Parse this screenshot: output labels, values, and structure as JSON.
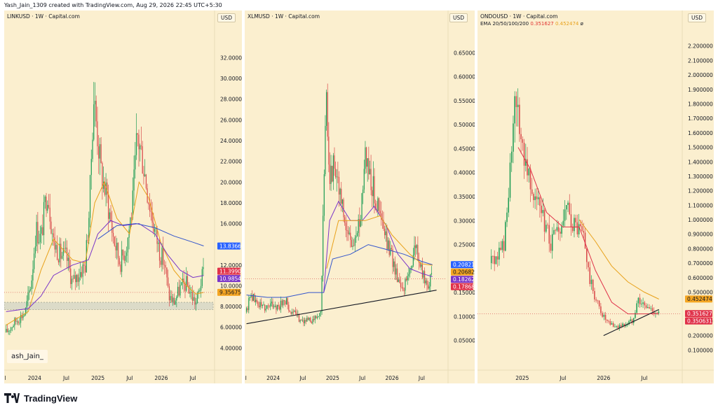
{
  "header": {
    "created_by": "Yash_Jain_1309 created with TradingView.com, Aug 29, 2026 22:45 UTC+5:30"
  },
  "footer": {
    "brand": "TradingView",
    "icon": "tradingview-logo-icon"
  },
  "watermark": "ash_Jain_",
  "chart_data": [
    {
      "type": "candlestick",
      "title": "LINKUSD · 1W · Capital.com",
      "currency": "USD",
      "y_ticks": [
        "32.00000",
        "30.00000",
        "28.00000",
        "26.00000",
        "24.00000",
        "22.00000",
        "20.00000",
        "18.00000",
        "16.00000",
        "12.00000",
        "10.00000",
        "8.00000",
        "6.00000",
        "4.00000"
      ],
      "y_tick_values": [
        32,
        30,
        28,
        26,
        24,
        22,
        20,
        18,
        16,
        12,
        10,
        8,
        6,
        4
      ],
      "ylim": [
        2.4,
        34.8
      ],
      "x_ticks": [
        "Jul",
        "2024",
        "Jul",
        "2025",
        "Jul",
        "2026",
        "Jul"
      ],
      "x_tick_dates": [
        "2023-07-01",
        "2024-01-01",
        "2024-07-01",
        "2025-01-01",
        "2025-07-01",
        "2026-01-01",
        "2026-07-01"
      ],
      "price_labels": [
        {
          "text": "13.83660",
          "value": 13.8366,
          "color": "#2962ff"
        },
        {
          "text": "11.39906",
          "value": 11.39906,
          "color": "#e0324a"
        },
        {
          "text": "10.98541",
          "value": 10.98541,
          "color": "#7a35c8"
        },
        {
          "text": "9.35675",
          "value": 9.35675,
          "color": "#f5a623"
        }
      ],
      "support_zone": [
        7.7,
        8.4
      ],
      "price_path": [
        [
          2023.55,
          5.5
        ],
        [
          2023.7,
          6.6
        ],
        [
          2023.85,
          7.4
        ],
        [
          2023.95,
          10.5
        ],
        [
          2024.02,
          15.5
        ],
        [
          2024.1,
          14.5
        ],
        [
          2024.2,
          19.5
        ],
        [
          2024.3,
          14.2
        ],
        [
          2024.4,
          13
        ],
        [
          2024.5,
          12.8
        ],
        [
          2024.6,
          10.2
        ],
        [
          2024.7,
          11.2
        ],
        [
          2024.8,
          12
        ],
        [
          2024.87,
          18
        ],
        [
          2024.93,
          28.5
        ],
        [
          2024.98,
          25.5
        ],
        [
          2025.05,
          21
        ],
        [
          2025.15,
          18.2
        ],
        [
          2025.25,
          14.5
        ],
        [
          2025.35,
          12.2
        ],
        [
          2025.45,
          13.8
        ],
        [
          2025.55,
          18
        ],
        [
          2025.62,
          24.5
        ],
        [
          2025.7,
          22.5
        ],
        [
          2025.8,
          18.5
        ],
        [
          2025.9,
          15.2
        ],
        [
          2025.98,
          13.2
        ],
        [
          2026.05,
          12.2
        ],
        [
          2026.12,
          9
        ],
        [
          2026.2,
          8.4
        ],
        [
          2026.3,
          9.8
        ],
        [
          2026.4,
          10.2
        ],
        [
          2026.5,
          8.8
        ],
        [
          2026.55,
          8.3
        ],
        [
          2026.62,
          10.2
        ],
        [
          2026.67,
          11.4
        ]
      ],
      "ema_paths": [
        {
          "color": "#e8a11a",
          "points": [
            [
              2023.55,
              6.2
            ],
            [
              2023.9,
              7.5
            ],
            [
              2024.1,
              11.5
            ],
            [
              2024.3,
              14.5
            ],
            [
              2024.6,
              12.5
            ],
            [
              2024.8,
              12.2
            ],
            [
              2024.95,
              18
            ],
            [
              2025.1,
              20
            ],
            [
              2025.3,
              16.5
            ],
            [
              2025.5,
              15
            ],
            [
              2025.65,
              20
            ],
            [
              2025.8,
              18.5
            ],
            [
              2026.0,
              14
            ],
            [
              2026.2,
              11.5
            ],
            [
              2026.4,
              10
            ],
            [
              2026.55,
              9.2
            ],
            [
              2026.67,
              9.36
            ]
          ]
        },
        {
          "color": "#7a35c8",
          "points": [
            [
              2023.55,
              7.5
            ],
            [
              2023.9,
              7.8
            ],
            [
              2024.1,
              9
            ],
            [
              2024.3,
              11
            ],
            [
              2024.6,
              12
            ],
            [
              2024.85,
              12.5
            ],
            [
              2025.0,
              15
            ],
            [
              2025.2,
              16.3
            ],
            [
              2025.4,
              15.8
            ],
            [
              2025.65,
              16
            ],
            [
              2025.9,
              15
            ],
            [
              2026.1,
              13
            ],
            [
              2026.3,
              11.5
            ],
            [
              2026.5,
              10.8
            ],
            [
              2026.67,
              10.99
            ]
          ]
        },
        {
          "color": "#3355cc",
          "points": [
            [
              2025.0,
              14.5
            ],
            [
              2025.3,
              15.8
            ],
            [
              2025.6,
              16
            ],
            [
              2025.9,
              15.6
            ],
            [
              2026.2,
              14.8
            ],
            [
              2026.5,
              14.2
            ],
            [
              2026.67,
              13.84
            ]
          ]
        }
      ]
    },
    {
      "type": "candlestick",
      "title": "XLMUSD · 1W · Capital.com",
      "currency": "USD",
      "y_ticks": [
        "0.65000",
        "0.60000",
        "0.55000",
        "0.50000",
        "0.45000",
        "0.40000",
        "0.35000",
        "0.30000",
        "0.25000",
        "0.15000",
        "0.10000",
        "0.05000"
      ],
      "y_tick_values": [
        0.65,
        0.6,
        0.55,
        0.5,
        0.45,
        0.4,
        0.35,
        0.3,
        0.25,
        0.15,
        0.1,
        0.05
      ],
      "ylim": [
        0.0,
        0.7
      ],
      "x_ticks": [
        "Jul",
        "2024",
        "Jul",
        "2025",
        "Jul",
        "2026",
        "Jul"
      ],
      "x_tick_dates": [
        "2023-07-01",
        "2024-01-01",
        "2024-07-01",
        "2025-01-01",
        "2025-07-01",
        "2026-01-01",
        "2026-07-01"
      ],
      "price_labels": [
        {
          "text": "0.20821",
          "value": 0.20821,
          "color": "#2962ff"
        },
        {
          "text": "0.20682",
          "value": 0.20682,
          "color": "#f5a623"
        },
        {
          "text": "0.18262",
          "value": 0.18262,
          "color": "#7a35c8"
        },
        {
          "text": "0.17868",
          "value": 0.17868,
          "color": "#e0324a"
        }
      ],
      "trendline": [
        [
          2023.55,
          0.085
        ],
        [
          2026.75,
          0.155
        ]
      ],
      "price_path": [
        [
          2023.55,
          0.11
        ],
        [
          2023.62,
          0.15
        ],
        [
          2023.7,
          0.13
        ],
        [
          2023.85,
          0.12
        ],
        [
          2024.0,
          0.125
        ],
        [
          2024.1,
          0.12
        ],
        [
          2024.2,
          0.135
        ],
        [
          2024.3,
          0.11
        ],
        [
          2024.45,
          0.095
        ],
        [
          2024.6,
          0.09
        ],
        [
          2024.7,
          0.095
        ],
        [
          2024.8,
          0.105
        ],
        [
          2024.87,
          0.45
        ],
        [
          2024.9,
          0.55
        ],
        [
          2024.95,
          0.4
        ],
        [
          2025.05,
          0.42
        ],
        [
          2025.15,
          0.33
        ],
        [
          2025.25,
          0.27
        ],
        [
          2025.35,
          0.25
        ],
        [
          2025.45,
          0.29
        ],
        [
          2025.55,
          0.45
        ],
        [
          2025.62,
          0.4
        ],
        [
          2025.72,
          0.35
        ],
        [
          2025.82,
          0.3
        ],
        [
          2025.92,
          0.25
        ],
        [
          2026.0,
          0.22
        ],
        [
          2026.1,
          0.18
        ],
        [
          2026.2,
          0.16
        ],
        [
          2026.3,
          0.2
        ],
        [
          2026.4,
          0.25
        ],
        [
          2026.5,
          0.19
        ],
        [
          2026.6,
          0.17
        ],
        [
          2026.68,
          0.18
        ]
      ],
      "ema_paths": [
        {
          "color": "#3355cc",
          "points": [
            [
              2023.55,
              0.145
            ],
            [
              2023.9,
              0.14
            ],
            [
              2024.2,
              0.14
            ],
            [
              2024.6,
              0.15
            ],
            [
              2024.85,
              0.15
            ],
            [
              2025.0,
              0.22
            ],
            [
              2025.3,
              0.23
            ],
            [
              2025.6,
              0.25
            ],
            [
              2025.9,
              0.24
            ],
            [
              2026.2,
              0.23
            ],
            [
              2026.5,
              0.215
            ],
            [
              2026.68,
              0.208
            ]
          ]
        },
        {
          "color": "#7a35c8",
          "points": [
            [
              2024.85,
              0.15
            ],
            [
              2024.95,
              0.3
            ],
            [
              2025.1,
              0.34
            ],
            [
              2025.3,
              0.3
            ],
            [
              2025.5,
              0.3
            ],
            [
              2025.7,
              0.33
            ],
            [
              2025.9,
              0.29
            ],
            [
              2026.1,
              0.23
            ],
            [
              2026.3,
              0.2
            ],
            [
              2026.5,
              0.19
            ],
            [
              2026.68,
              0.183
            ]
          ]
        },
        {
          "color": "#e8a11a",
          "points": [
            [
              2024.9,
              0.2
            ],
            [
              2025.1,
              0.3
            ],
            [
              2025.3,
              0.3
            ],
            [
              2025.55,
              0.3
            ],
            [
              2025.8,
              0.31
            ],
            [
              2026.0,
              0.27
            ],
            [
              2026.3,
              0.23
            ],
            [
              2026.5,
              0.21
            ],
            [
              2026.68,
              0.207
            ]
          ]
        }
      ]
    },
    {
      "type": "candlestick",
      "title": "ONDOUSD · 1W · Capital.com",
      "currency": "USD",
      "ema_legend": {
        "label": "EMA 20/50/100/200",
        "value_a": "0.351627",
        "value_b": "0.452474",
        "value_c": "ø"
      },
      "y_ticks": [
        "2.200000",
        "2.100000",
        "2.000000",
        "1.900000",
        "1.800000",
        "1.700000",
        "1.600000",
        "1.500000",
        "1.400000",
        "1.300000",
        "1.200000",
        "1.100000",
        "1.000000",
        "0.900000",
        "0.800000",
        "0.700000",
        "0.600000",
        "0.500000",
        "0.300000",
        "0.200000",
        "0.100000"
      ],
      "y_tick_values": [
        2.2,
        2.1,
        2.0,
        1.9,
        1.8,
        1.7,
        1.6,
        1.5,
        1.4,
        1.3,
        1.2,
        1.1,
        1.0,
        0.9,
        0.8,
        0.7,
        0.6,
        0.5,
        0.3,
        0.2,
        0.1
      ],
      "ylim": [
        0.0,
        2.3
      ],
      "x_ticks": [
        "2025",
        "Jul",
        "2026",
        "Jul"
      ],
      "x_tick_dates": [
        "2025-01-01",
        "2025-07-01",
        "2026-01-01",
        "2026-07-01"
      ],
      "price_labels": [
        {
          "text": "0.452474",
          "value": 0.452474,
          "color": "#f5a623"
        },
        {
          "text": "0.351627",
          "value": 0.351627,
          "color": "#e0324a"
        },
        {
          "text": "0.350631",
          "value": 0.350631,
          "color": "#e0324a"
        }
      ],
      "trendline": [
        [
          2026.0,
          0.2
        ],
        [
          2026.68,
          0.38
        ]
      ],
      "price_path": [
        [
          2024.62,
          0.7
        ],
        [
          2024.7,
          0.75
        ],
        [
          2024.78,
          0.85
        ],
        [
          2024.85,
          1.3
        ],
        [
          2024.92,
          1.8
        ],
        [
          2024.98,
          1.6
        ],
        [
          2025.05,
          1.4
        ],
        [
          2025.15,
          1.2
        ],
        [
          2025.25,
          1.0
        ],
        [
          2025.35,
          0.85
        ],
        [
          2025.45,
          0.9
        ],
        [
          2025.55,
          1.05
        ],
        [
          2025.65,
          0.95
        ],
        [
          2025.75,
          0.9
        ],
        [
          2025.82,
          0.6
        ],
        [
          2025.9,
          0.45
        ],
        [
          2025.98,
          0.35
        ],
        [
          2026.05,
          0.28
        ],
        [
          2026.15,
          0.26
        ],
        [
          2026.25,
          0.27
        ],
        [
          2026.35,
          0.3
        ],
        [
          2026.42,
          0.45
        ],
        [
          2026.5,
          0.4
        ],
        [
          2026.58,
          0.38
        ],
        [
          2026.65,
          0.36
        ],
        [
          2026.68,
          0.35
        ]
      ],
      "ema_paths": [
        {
          "color": "#e0324a",
          "points": [
            [
              2024.95,
              1.5
            ],
            [
              2025.1,
              1.35
            ],
            [
              2025.3,
              1.05
            ],
            [
              2025.5,
              0.95
            ],
            [
              2025.7,
              0.95
            ],
            [
              2025.9,
              0.65
            ],
            [
              2026.1,
              0.43
            ],
            [
              2026.3,
              0.35
            ],
            [
              2026.5,
              0.35
            ],
            [
              2026.68,
              0.352
            ]
          ]
        },
        {
          "color": "#e8a11a",
          "points": [
            [
              2025.7,
              1.0
            ],
            [
              2025.9,
              0.85
            ],
            [
              2026.1,
              0.68
            ],
            [
              2026.3,
              0.57
            ],
            [
              2026.5,
              0.5
            ],
            [
              2026.68,
              0.452
            ]
          ]
        }
      ]
    }
  ]
}
